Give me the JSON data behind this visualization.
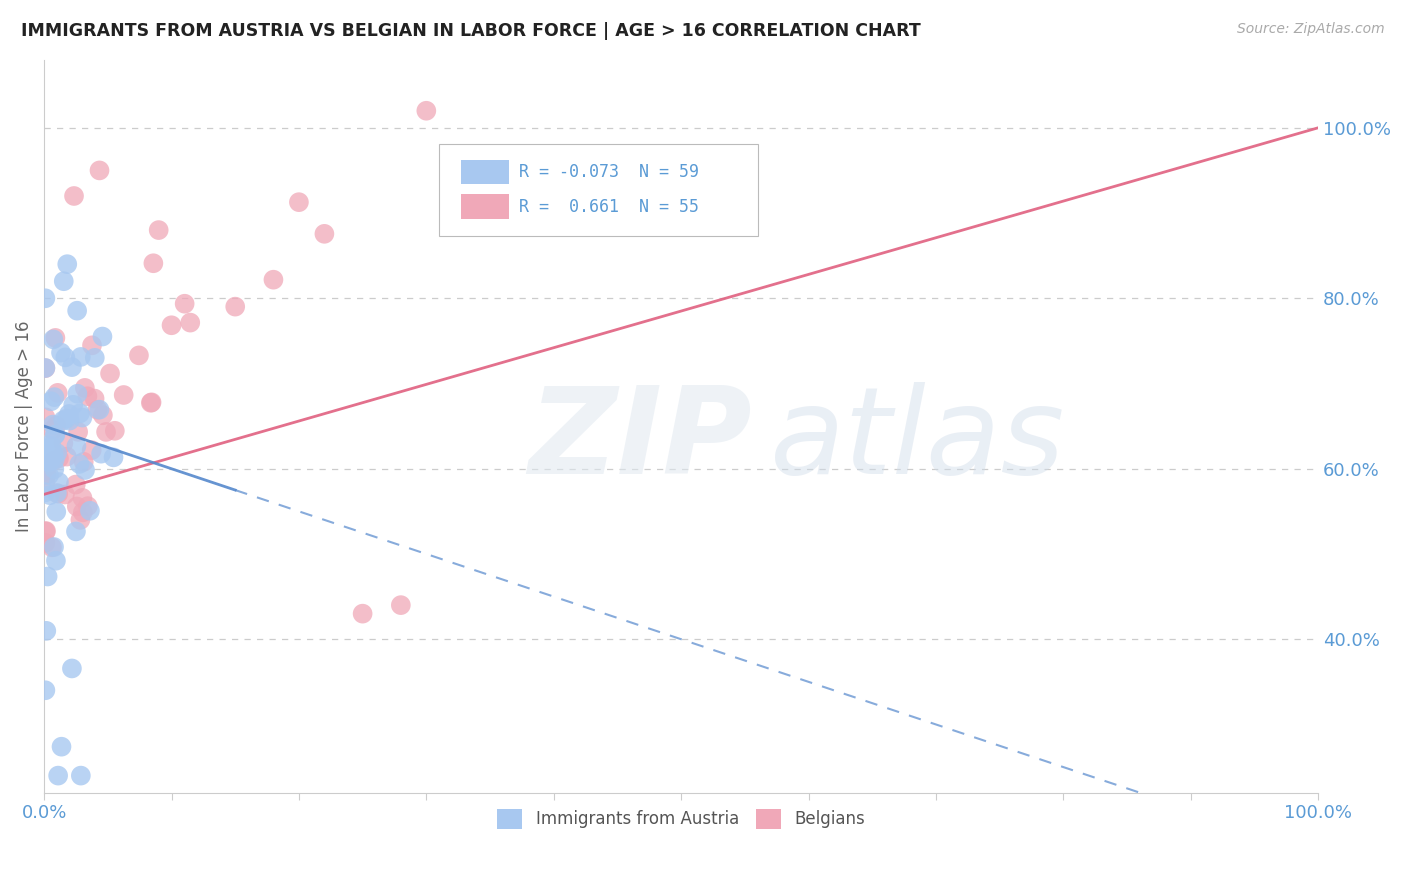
{
  "title": "IMMIGRANTS FROM AUSTRIA VS BELGIAN IN LABOR FORCE | AGE > 16 CORRELATION CHART",
  "source": "Source: ZipAtlas.com",
  "legend_label_austria": "Immigrants from Austria",
  "legend_label_belgian": "Belgians",
  "austria_color": "#a8c8f0",
  "belgian_color": "#f0a8b8",
  "austria_line_color": "#5588cc",
  "belgian_line_color": "#e06080",
  "austria_R": -0.073,
  "austria_N": 59,
  "belgian_R": 0.661,
  "belgian_N": 55,
  "xmin": 0.0,
  "xmax": 1.0,
  "ymin": 0.22,
  "ymax": 1.08,
  "yticks": [
    0.4,
    0.6,
    0.8,
    1.0
  ],
  "ytick_labels": [
    "40.0%",
    "60.0%",
    "80.0%",
    "100.0%"
  ],
  "background_color": "#ffffff",
  "grid_color": "#cccccc",
  "ylabel": "In Labor Force | Age > 16"
}
